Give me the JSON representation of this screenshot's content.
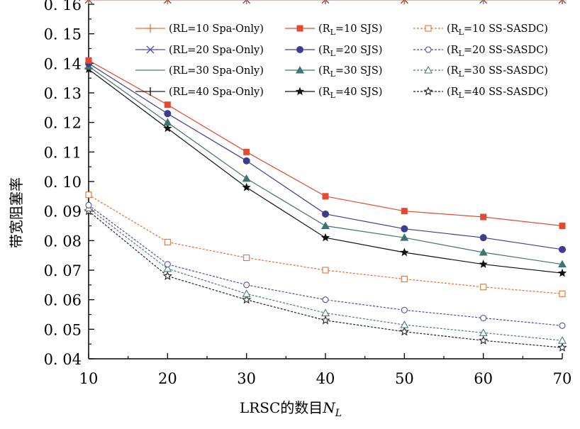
{
  "chart_data": {
    "type": "line",
    "title": "",
    "xlabel": "LRSC的数目N_L",
    "xlabel_main": "LRSC的数目",
    "xlabel_var": "N",
    "xlabel_sub": "L",
    "ylabel": "带宽阻塞率",
    "xlim": [
      10,
      70
    ],
    "ylim": [
      0.04,
      0.16
    ],
    "x_ticks": [
      10,
      20,
      30,
      40,
      50,
      60,
      70
    ],
    "x_tick_labels": [
      "10",
      "20",
      "30",
      "40",
      "50",
      "60",
      "70"
    ],
    "y_ticks": [
      0.04,
      0.05,
      0.06,
      0.07,
      0.08,
      0.09,
      0.1,
      0.11,
      0.12,
      0.13,
      0.14,
      0.15,
      0.16
    ],
    "y_tick_labels": [
      "0. 04",
      "0. 05",
      "0. 06",
      "0. 07",
      "0. 08",
      "0. 09",
      "0. 10",
      "0. 11",
      "0. 12",
      "0. 13",
      "0. 14",
      "0. 15",
      "0. 16"
    ],
    "grid": false,
    "legend_position": "top-right",
    "x": [
      10,
      20,
      30,
      40,
      50,
      60,
      70
    ],
    "series": [
      {
        "name": "(RL=10 Spa-Only)",
        "name_parts": [
          "(RL=10 Spa-Only)",
          "",
          ""
        ],
        "color": "#e3732e",
        "marker": "plus",
        "dash": "solid",
        "values": [
          0.1615,
          0.1615,
          0.1615,
          0.1615,
          0.1615,
          0.1615,
          0.1615
        ]
      },
      {
        "name": "(RL=20 Spa-Only)",
        "name_parts": [
          "(RL=20 Spa-Only)",
          "",
          ""
        ],
        "color": "#4a4f9e",
        "marker": "x",
        "dash": "solid",
        "values": [
          0.1615,
          0.1615,
          0.1615,
          0.1615,
          0.1615,
          0.1615,
          0.1615
        ]
      },
      {
        "name": "(RL=30 Spa-Only)",
        "name_parts": [
          "(RL=30 Spa-Only)",
          "",
          ""
        ],
        "color": "#4a7a7a",
        "marker": "none",
        "dash": "solid",
        "values": [
          0.1615,
          0.1615,
          0.1615,
          0.1615,
          0.1615,
          0.1615,
          0.1615
        ]
      },
      {
        "name": "(RL=40 Spa-Only)",
        "name_parts": [
          "(RL=40 Spa-Only)",
          "",
          ""
        ],
        "color": "#222222",
        "marker": "bar",
        "dash": "solid",
        "values": [
          0.1615,
          0.1615,
          0.1615,
          0.1615,
          0.1615,
          0.1615,
          0.1615
        ]
      },
      {
        "name": "(RL=10 SJS)",
        "name_parts": [
          "(R",
          "L",
          "=10 SJS)"
        ],
        "color": "#e34a33",
        "marker": "square",
        "dash": "solid",
        "values": [
          0.141,
          0.126,
          0.11,
          0.095,
          0.09,
          0.088,
          0.085
        ]
      },
      {
        "name": "(RL=20 SJS)",
        "name_parts": [
          "(R",
          "L",
          "=20 SJS)"
        ],
        "color": "#3d3d8f",
        "marker": "circle",
        "dash": "solid",
        "values": [
          0.14,
          0.123,
          0.107,
          0.089,
          0.084,
          0.081,
          0.077
        ]
      },
      {
        "name": "(RL=30 SJS)",
        "name_parts": [
          "(R",
          "L",
          "=30 SJS)"
        ],
        "color": "#3e7472",
        "marker": "triangle",
        "dash": "solid",
        "values": [
          0.139,
          0.12,
          0.101,
          0.085,
          0.081,
          0.076,
          0.072
        ]
      },
      {
        "name": "(RL=40 SJS)",
        "name_parts": [
          "(R",
          "L",
          "=40 SJS)"
        ],
        "color": "#111111",
        "marker": "star",
        "dash": "solid",
        "values": [
          0.138,
          0.118,
          0.098,
          0.081,
          0.076,
          0.072,
          0.069
        ]
      },
      {
        "name": "(RL=10 SS-SASDC)",
        "name_parts": [
          "(R",
          "L",
          "=10 SS-SASDC)"
        ],
        "color": "#e3732e",
        "marker": "square-open",
        "dash": "dashed",
        "values": [
          0.0955,
          0.0795,
          0.0742,
          0.07,
          0.067,
          0.0643,
          0.062
        ]
      },
      {
        "name": "(RL=20 SS-SASDC)",
        "name_parts": [
          "(R",
          "L",
          "=20 SS-SASDC)"
        ],
        "color": "#4a4f9e",
        "marker": "circle-open",
        "dash": "dashed",
        "values": [
          0.092,
          0.072,
          0.065,
          0.06,
          0.0565,
          0.0538,
          0.0512
        ]
      },
      {
        "name": "(RL=30 SS-SASDC)",
        "name_parts": [
          "(R",
          "L",
          "=30 SS-SASDC)"
        ],
        "color": "#4a7a7a",
        "marker": "triangle-open",
        "dash": "dashed",
        "values": [
          0.091,
          0.0705,
          0.062,
          0.0555,
          0.0515,
          0.0488,
          0.0462
        ]
      },
      {
        "name": "(RL=40 SS-SASDC)",
        "name_parts": [
          "(R",
          "L",
          "=40 SS-SASDC)"
        ],
        "color": "#222222",
        "marker": "star-open",
        "dash": "dashed",
        "values": [
          0.09,
          0.068,
          0.06,
          0.053,
          0.0492,
          0.0462,
          0.0438
        ]
      }
    ]
  }
}
